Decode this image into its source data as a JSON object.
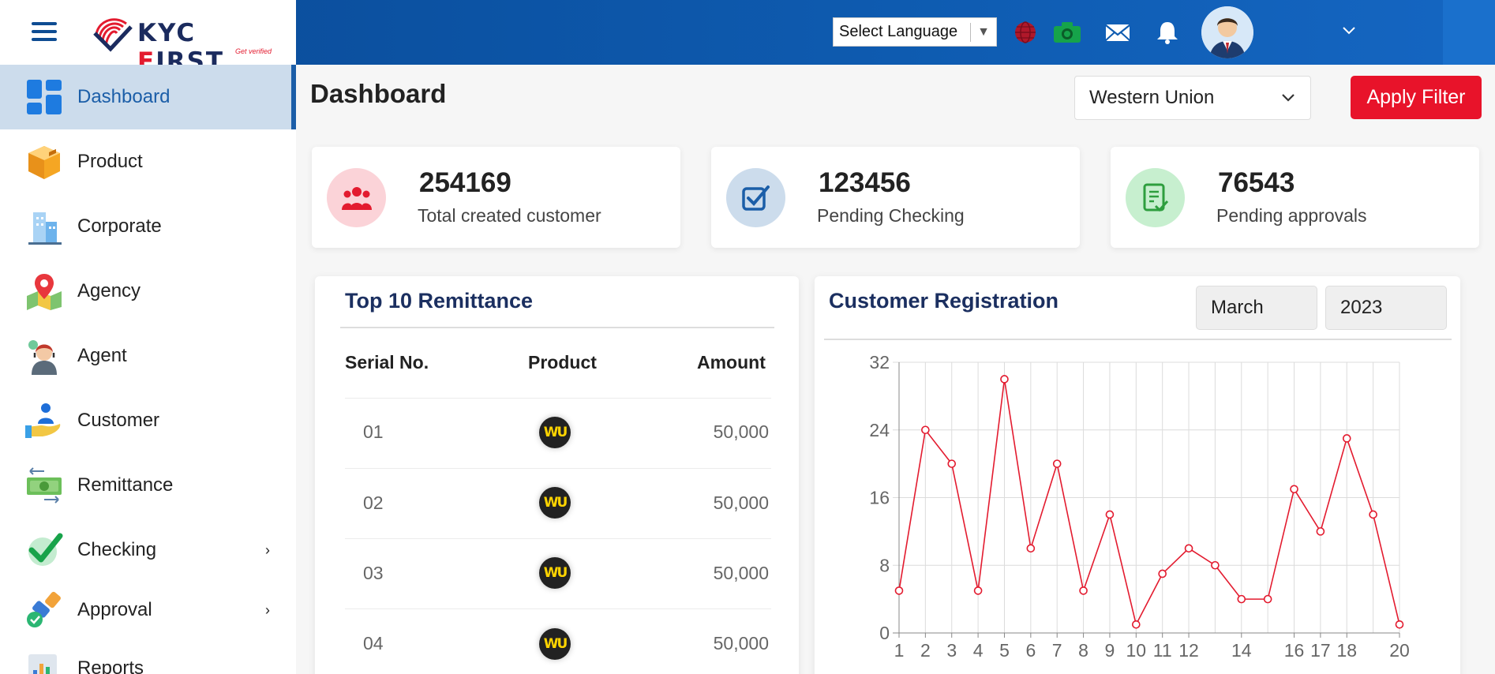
{
  "header": {
    "brand_name_a": "KYC ",
    "brand_name_b": "F",
    "brand_name_c": "IRST",
    "brand_tagline": "Get verified",
    "language_select": {
      "label": "Select Language"
    }
  },
  "sidebar": {
    "items": [
      {
        "label": "Dashboard",
        "icon": "dashboard-icon",
        "active": true
      },
      {
        "label": "Product",
        "icon": "box-icon"
      },
      {
        "label": "Corporate",
        "icon": "building-icon"
      },
      {
        "label": "Agency",
        "icon": "map-pin-icon"
      },
      {
        "label": "Agent",
        "icon": "agent-icon"
      },
      {
        "label": "Customer",
        "icon": "customer-icon"
      },
      {
        "label": "Remittance",
        "icon": "money-icon"
      },
      {
        "label": "Checking",
        "icon": "check-icon",
        "expandable": true
      },
      {
        "label": "Approval",
        "icon": "approval-stamp-icon",
        "expandable": true
      },
      {
        "label": "Reports",
        "icon": "report-icon"
      }
    ]
  },
  "main": {
    "title": "Dashboard",
    "company_filter": {
      "value": "Western Union"
    },
    "apply_filter_label": "Apply Filter",
    "stats": [
      {
        "value": "254169",
        "label": "Total created customer",
        "color": "#e31b2f"
      },
      {
        "value": "123456",
        "label": "Pending Checking",
        "color": "#1b5ea8"
      },
      {
        "value": "76543",
        "label": "Pending approvals",
        "color": "#2e9e3e"
      }
    ],
    "remittance": {
      "title": "Top 10 Remittance",
      "columns": [
        "Serial No.",
        "Product",
        "Amount"
      ],
      "rows": [
        {
          "serial": "01",
          "product_logo": "WU",
          "amount": "50,000"
        },
        {
          "serial": "02",
          "product_logo": "WU",
          "amount": "50,000"
        },
        {
          "serial": "03",
          "product_logo": "WU",
          "amount": "50,000"
        },
        {
          "serial": "04",
          "product_logo": "WU",
          "amount": "50,000"
        }
      ]
    },
    "registration": {
      "title": "Customer Registration",
      "month": "March",
      "year": "2023"
    }
  },
  "chart_data": {
    "type": "line",
    "title": "",
    "xlabel": "",
    "ylabel": "",
    "x": [
      1,
      2,
      3,
      4,
      5,
      6,
      7,
      8,
      9,
      10,
      11,
      12,
      13,
      14,
      15,
      16,
      17,
      18,
      19,
      20
    ],
    "x_tick_labels": [
      "1",
      "2",
      "3",
      "4",
      "5",
      "6",
      "7",
      "8",
      "9",
      "10",
      "11",
      "12",
      "14",
      "16",
      "17",
      "18",
      "20"
    ],
    "x_tick_values": [
      1,
      2,
      3,
      4,
      5,
      6,
      7,
      8,
      9,
      10,
      11,
      12,
      14,
      16,
      17,
      18,
      20
    ],
    "series": [
      {
        "values": [
          5,
          24,
          20,
          5,
          30,
          10,
          20,
          5,
          14,
          1,
          7,
          10,
          8,
          4,
          4,
          17,
          12,
          23,
          14,
          1
        ],
        "color": "#e31b2f"
      }
    ],
    "ylim": [
      0,
      32
    ],
    "y_ticks": [
      0,
      8,
      16,
      24,
      32
    ],
    "xlim": [
      1,
      20
    ],
    "grid": true
  }
}
